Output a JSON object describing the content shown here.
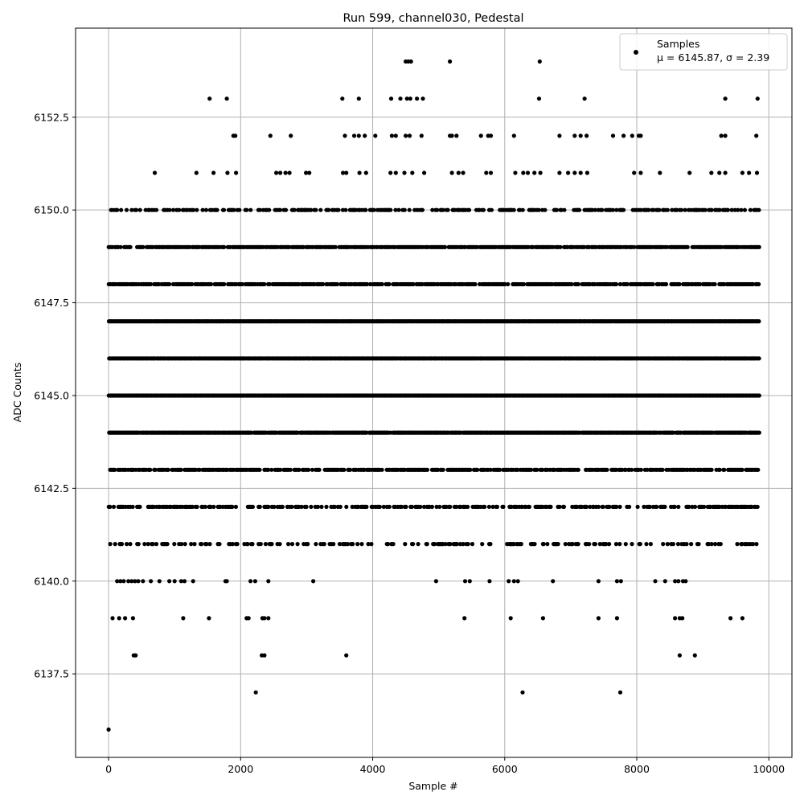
{
  "chart_data": {
    "type": "scatter",
    "title": "Run 599, channel030, Pedestal",
    "xlabel": "Sample #",
    "ylabel": "ADC Counts",
    "xlim": [
      -500,
      10350
    ],
    "ylim": [
      6135.25,
      6154.9
    ],
    "x_ticks": [
      0,
      2000,
      4000,
      6000,
      8000,
      10000
    ],
    "y_ticks": [
      6137.5,
      6140.0,
      6142.5,
      6145.0,
      6147.5,
      6150.0,
      6152.5
    ],
    "x_tick_labels": [
      "0",
      "2000",
      "4000",
      "6000",
      "8000",
      "10000"
    ],
    "y_tick_labels": [
      "6137.5",
      "6140.0",
      "6142.5",
      "6145.0",
      "6147.5",
      "6150.0",
      "6152.5"
    ],
    "grid": true,
    "legend_position": "top-right",
    "series": [
      {
        "name": "Samples",
        "marker_color": "#000000",
        "n_samples": 9850,
        "dense_levels": [
          6141,
          6142,
          6143,
          6144,
          6145,
          6146,
          6147,
          6148,
          6149,
          6150
        ],
        "points": [
          [
            0,
            6136
          ],
          [
            2230,
            6137
          ],
          [
            6270,
            6137
          ],
          [
            7750,
            6137
          ],
          [
            380,
            6138
          ],
          [
            410,
            6138
          ],
          [
            2320,
            6138
          ],
          [
            2360,
            6138
          ],
          [
            3600,
            6138
          ],
          [
            8650,
            6138
          ],
          [
            8880,
            6138
          ],
          [
            60,
            6139
          ],
          [
            160,
            6139
          ],
          [
            250,
            6139
          ],
          [
            370,
            6139
          ],
          [
            1130,
            6139
          ],
          [
            1520,
            6139
          ],
          [
            2090,
            6139
          ],
          [
            2120,
            6139
          ],
          [
            2330,
            6139
          ],
          [
            2360,
            6139
          ],
          [
            2420,
            6139
          ],
          [
            5390,
            6139
          ],
          [
            6090,
            6139
          ],
          [
            6580,
            6139
          ],
          [
            7420,
            6139
          ],
          [
            7700,
            6139
          ],
          [
            8580,
            6139
          ],
          [
            8650,
            6139
          ],
          [
            8690,
            6139
          ],
          [
            9420,
            6139
          ],
          [
            9600,
            6139
          ],
          [
            1530,
            6153
          ],
          [
            1790,
            6153
          ],
          [
            3540,
            6153
          ],
          [
            3790,
            6153
          ],
          [
            4280,
            6153
          ],
          [
            4420,
            6153
          ],
          [
            4520,
            6153
          ],
          [
            4570,
            6153
          ],
          [
            4670,
            6153
          ],
          [
            4760,
            6153
          ],
          [
            6520,
            6153
          ],
          [
            7210,
            6153
          ],
          [
            9340,
            6153
          ],
          [
            9830,
            6153
          ],
          [
            4500,
            6154
          ],
          [
            4540,
            6154
          ],
          [
            4580,
            6154
          ],
          [
            5170,
            6154
          ],
          [
            6530,
            6154
          ]
        ],
        "level_ranges": [
          {
            "y": 6140,
            "x": [
              130,
              180,
              230,
              300,
              350,
              400,
              450,
              520,
              640,
              770,
              920,
              1000,
              1100,
              1150,
              1280,
              1770,
              1790,
              2150,
              2220,
              2420,
              3100,
              4960,
              5400,
              5470,
              5770,
              6060,
              6140,
              6200,
              6730,
              7420,
              7700,
              7760,
              8280,
              8430,
              8580,
              8630,
              8700,
              8740
            ]
          },
          {
            "y": 6151,
            "x": [
              700,
              1330,
              1590,
              1800,
              1930,
              2540,
              2600,
              2680,
              2740,
              2990,
              3040,
              3550,
              3600,
              3800,
              3900,
              4270,
              4350,
              4480,
              4600,
              4780,
              5200,
              5300,
              5370,
              5720,
              5790,
              6160,
              6280,
              6350,
              6450,
              6540,
              6830,
              6960,
              7060,
              7150,
              7250,
              7960,
              8060,
              8350,
              8800,
              9130,
              9250,
              9340,
              9600,
              9700,
              9820
            ]
          },
          {
            "y": 6152,
            "x": [
              1890,
              1920,
              2450,
              2760,
              3580,
              3720,
              3790,
              3880,
              4040,
              4290,
              4350,
              4500,
              4560,
              4740,
              5170,
              5200,
              5270,
              5640,
              5750,
              5790,
              6140,
              6830,
              7060,
              7150,
              7240,
              7640,
              7800,
              7930,
              8030,
              8060,
              9280,
              9340,
              9810
            ]
          }
        ]
      }
    ],
    "legend": {
      "label": "Samples",
      "stats_text": "μ = 6145.87, σ = 2.39"
    }
  }
}
